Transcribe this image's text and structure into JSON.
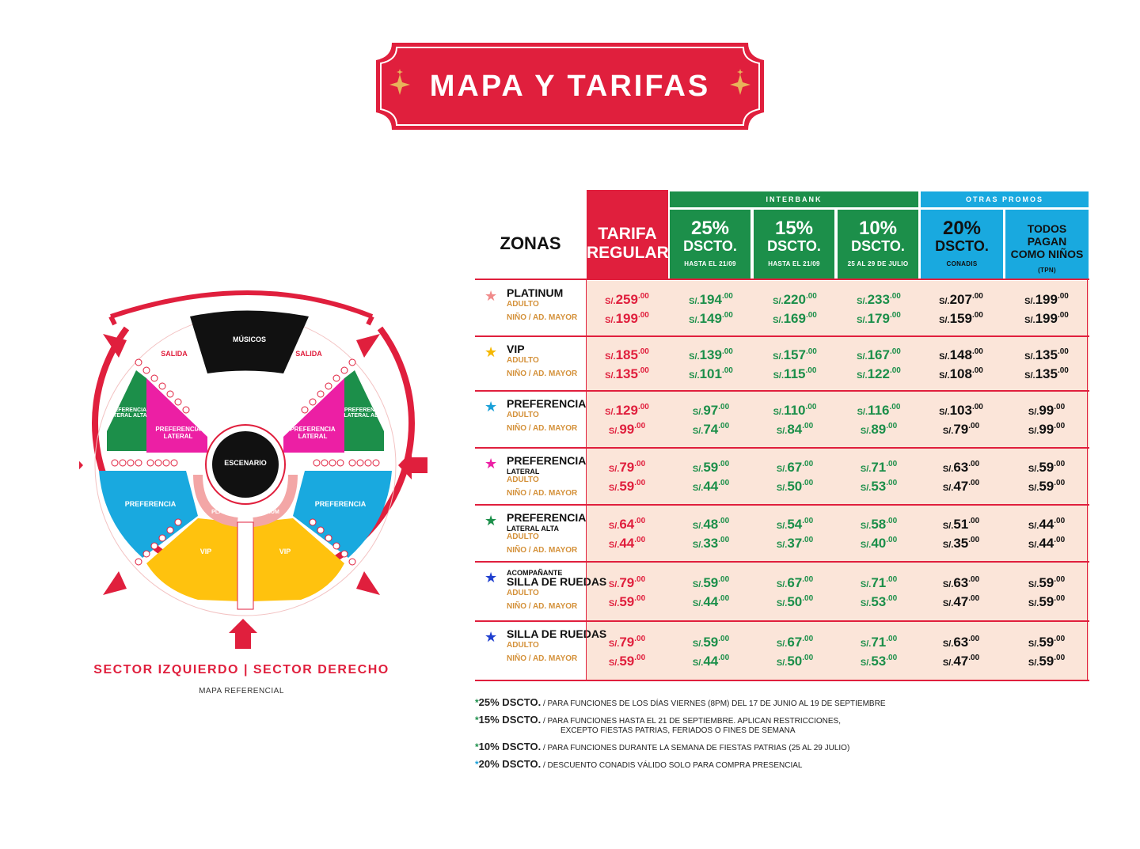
{
  "banner": {
    "title": "MAPA Y TARIFAS"
  },
  "map": {
    "musicians": "MÚSICOS",
    "stage": "ESCENARIO",
    "exit_left": "SALIDA",
    "exit_right": "SALIDA",
    "zones": {
      "pref_lateral_alta": "PREFERENCIA LATERAL ALTA",
      "pref_lateral": "PREFERENCIA LATERAL",
      "preferencia": "PREFERENCIA",
      "platinum": "PLATINUM",
      "vip": "VIP"
    },
    "caption": "SECTOR IZQUIERDO | SECTOR DERECHO",
    "note": "MAPA REFERENCIAL"
  },
  "table": {
    "zones_header": "ZONAS",
    "regular_header": "TARIFA REGULAR",
    "interbank_label": "INTERBANK",
    "otras_label": "OTRAS PROMOS",
    "columns": [
      {
        "pct": "25%",
        "label": "DSCTO.",
        "sub": "HASTA EL 21/09"
      },
      {
        "pct": "15%",
        "label": "DSCTO.",
        "sub": "HASTA EL 21/09"
      },
      {
        "pct": "10%",
        "label": "DSCTO.",
        "sub": "25 AL 29 DE JULIO"
      },
      {
        "pct": "20%",
        "label": "DSCTO.",
        "sub": "CONADIS"
      },
      {
        "pct": "",
        "label": "TODOS PAGAN COMO NIÑOS",
        "sub": "(TPN)"
      }
    ],
    "currency": "S/.",
    "decimals": ".00",
    "rows": [
      {
        "name": "PLATINUM",
        "sub": "",
        "star": "#f08a8a",
        "adult_label": "ADULTO",
        "kid_label": "NIÑO / AD. MAYOR",
        "adult": [
          "259",
          "194",
          "220",
          "233",
          "207",
          "199"
        ],
        "kid": [
          "199",
          "149",
          "169",
          "179",
          "159",
          "199"
        ]
      },
      {
        "name": "VIP",
        "sub": "",
        "star": "#f5b800",
        "adult_label": "ADULTO",
        "kid_label": "NIÑO / AD. MAYOR",
        "adult": [
          "185",
          "139",
          "157",
          "167",
          "148",
          "135"
        ],
        "kid": [
          "135",
          "101",
          "115",
          "122",
          "108",
          "135"
        ]
      },
      {
        "name": "PREFERENCIA",
        "sub": "",
        "star": "#1aa0d8",
        "adult_label": "ADULTO",
        "kid_label": "NIÑO / AD. MAYOR",
        "adult": [
          "129",
          "97",
          "110",
          "116",
          "103",
          "99"
        ],
        "kid": [
          "99",
          "74",
          "84",
          "89",
          "79",
          "99"
        ]
      },
      {
        "name": "PREFERENCIA",
        "sub": "LATERAL",
        "star": "#ec1fa4",
        "adult_label": "ADULTO",
        "kid_label": "NIÑO / AD. MAYOR",
        "adult": [
          "79",
          "59",
          "67",
          "71",
          "63",
          "59"
        ],
        "kid": [
          "59",
          "44",
          "50",
          "53",
          "47",
          "59"
        ]
      },
      {
        "name": "PREFERENCIA",
        "sub": "LATERAL ALTA",
        "star": "#1c8f4a",
        "adult_label": "ADULTO",
        "kid_label": "NIÑO / AD. MAYOR",
        "adult": [
          "64",
          "48",
          "54",
          "58",
          "51",
          "44"
        ],
        "kid": [
          "44",
          "33",
          "37",
          "40",
          "35",
          "44"
        ]
      },
      {
        "name": "SILLA DE RUEDAS",
        "sub": "ACOMPAÑANTE",
        "star": "#1f3fcf",
        "adult_label": "ADULTO",
        "kid_label": "NIÑO / AD. MAYOR",
        "adult": [
          "79",
          "59",
          "67",
          "71",
          "63",
          "59"
        ],
        "kid": [
          "59",
          "44",
          "50",
          "53",
          "47",
          "59"
        ]
      },
      {
        "name": "SILLA DE RUEDAS",
        "sub": "",
        "star": "#1f3fcf",
        "adult_label": "ADULTO",
        "kid_label": "NIÑO / AD. MAYOR",
        "adult": [
          "79",
          "59",
          "67",
          "71",
          "63",
          "59"
        ],
        "kid": [
          "59",
          "44",
          "50",
          "53",
          "47",
          "59"
        ]
      }
    ]
  },
  "notes": [
    {
      "star": "#1c8f4a",
      "lead": "25% DSCTO.",
      "text": " / PARA FUNCIONES DE LOS DÍAS VIERNES (8PM) DEL 17 DE JUNIO AL 19 DE SEPTIEMBRE",
      "text2": ""
    },
    {
      "star": "#1c8f4a",
      "lead": "15% DSCTO.",
      "text": " / PARA FUNCIONES HASTA EL 21 DE SEPTIEMBRE. APLICAN RESTRICCIONES,",
      "text2": "EXCEPTO FIESTAS PATRIAS, FERIADOS O FINES DE SEMANA"
    },
    {
      "star": "#1c8f4a",
      "lead": "10% DSCTO.",
      "text": " / PARA FUNCIONES DURANTE LA SEMANA DE FIESTAS PATRIAS (25 AL 29 JULIO)",
      "text2": ""
    },
    {
      "star": "#1aa0d8",
      "lead": "20% DSCTO.",
      "text": " / DESCUENTO CONADIS VÁLIDO SOLO PARA COMPRA PRESENCIAL",
      "text2": ""
    }
  ],
  "colors": {
    "red": "#e01f3d",
    "green": "#1c8f4a",
    "cyan": "#19a9df",
    "pink": "#ec1fa4",
    "yellow": "#ffc20e",
    "blue": "#13a9d9",
    "gold": "#d4913a",
    "peach": "#fbe5d9"
  }
}
